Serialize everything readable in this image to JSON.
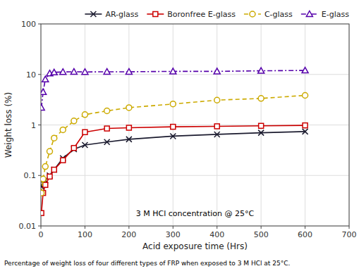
{
  "chart_data": {
    "type": "line",
    "x_label": "Acid exposure time (Hrs)",
    "y_label": "Weight loss (%)",
    "annotation": "3 M HCl concentration @ 25°C",
    "caption": "Percentage of weight loss of four different types of FRP when exposed to 3 M HCl at 25°C.",
    "x": [
      1,
      5,
      10,
      20,
      30,
      50,
      75,
      100,
      150,
      200,
      300,
      400,
      500,
      600
    ],
    "series": [
      {
        "name": "AR-glass",
        "color": "#1a1a2e",
        "marker": "x",
        "line_style": "solid",
        "values": [
          0.06,
          0.07,
          0.08,
          0.1,
          0.13,
          0.22,
          0.33,
          0.4,
          0.46,
          0.52,
          0.6,
          0.65,
          0.7,
          0.74
        ]
      },
      {
        "name": "Boronfree E-glass",
        "color": "#cc0000",
        "marker": "square",
        "line_style": "solid",
        "values": [
          0.018,
          0.045,
          0.065,
          0.095,
          0.13,
          0.2,
          0.35,
          0.72,
          0.85,
          0.88,
          0.92,
          0.94,
          0.96,
          0.98
        ]
      },
      {
        "name": "C-glass",
        "color": "#ccaa00",
        "marker": "circle",
        "line_style": "dashed",
        "values": [
          0.045,
          0.085,
          0.15,
          0.3,
          0.55,
          0.8,
          1.2,
          1.6,
          1.9,
          2.2,
          2.6,
          3.1,
          3.35,
          3.85
        ]
      },
      {
        "name": "E-glass",
        "color": "#5500aa",
        "marker": "triangle",
        "line_style": "dashdot",
        "values": [
          2.2,
          4.5,
          8.0,
          10.5,
          11.0,
          11.2,
          11.3,
          11.2,
          11.3,
          11.3,
          11.5,
          11.5,
          11.8,
          12.0
        ]
      }
    ],
    "xlim": [
      0,
      700
    ],
    "xticks": [
      0,
      100,
      200,
      300,
      400,
      500,
      600,
      700
    ],
    "ylim": [
      0.01,
      100
    ],
    "yticks": [
      0.01,
      0.1,
      1,
      10,
      100
    ],
    "log": "y",
    "grid": true,
    "legend": "top"
  }
}
